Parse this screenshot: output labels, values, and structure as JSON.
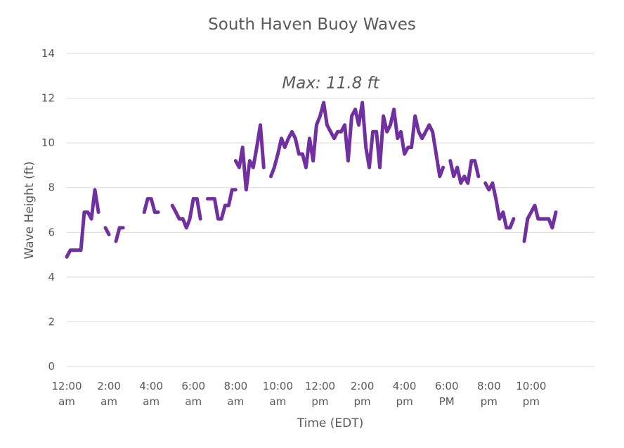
{
  "chart_data": {
    "type": "line",
    "title": "South Haven Buoy Waves",
    "xlabel": "Time (EDT)",
    "ylabel": "Wave Height (ft)",
    "ylim": [
      0,
      14
    ],
    "yticks": [
      "0",
      "2",
      "4",
      "6",
      "8",
      "10",
      "12",
      "14"
    ],
    "xlim": [
      0,
      25
    ],
    "xticks": [
      {
        "pos": 0,
        "line1": "12:00",
        "line2": "am"
      },
      {
        "pos": 2,
        "line1": "2:00",
        "line2": "am"
      },
      {
        "pos": 4,
        "line1": "4:00",
        "line2": "am"
      },
      {
        "pos": 6,
        "line1": "6:00",
        "line2": "am"
      },
      {
        "pos": 8,
        "line1": "8:00",
        "line2": "am"
      },
      {
        "pos": 10,
        "line1": "10:00",
        "line2": "am"
      },
      {
        "pos": 12,
        "line1": "12:00",
        "line2": "pm"
      },
      {
        "pos": 14,
        "line1": "2:00",
        "line2": "pm"
      },
      {
        "pos": 16,
        "line1": "4:00",
        "line2": "pm"
      },
      {
        "pos": 18,
        "line1": "6:00",
        "line2": "PM"
      },
      {
        "pos": 20,
        "line1": "8:00",
        "line2": "pm"
      },
      {
        "pos": 22,
        "line1": "10:00",
        "line2": "pm"
      }
    ],
    "grid": true,
    "legend": "none",
    "color": "#7030a0",
    "annotation": {
      "text": "Max: 11.8 ft",
      "x": 12.5,
      "y": 12.7
    },
    "segments": [
      [
        [
          0.0,
          4.9
        ],
        [
          0.17,
          5.2
        ],
        [
          0.33,
          5.2
        ],
        [
          0.5,
          5.2
        ],
        [
          0.67,
          5.2
        ],
        [
          0.83,
          6.9
        ],
        [
          1.0,
          6.9
        ],
        [
          1.17,
          6.6
        ],
        [
          1.33,
          7.9
        ],
        [
          1.5,
          6.9
        ]
      ],
      [
        [
          1.83,
          6.2
        ],
        [
          2.0,
          5.9
        ]
      ],
      [
        [
          2.33,
          5.6
        ],
        [
          2.5,
          6.2
        ],
        [
          2.67,
          6.2
        ]
      ],
      [
        [
          3.67,
          6.9
        ],
        [
          3.83,
          7.5
        ],
        [
          4.0,
          7.5
        ],
        [
          4.17,
          6.9
        ],
        [
          4.33,
          6.9
        ]
      ],
      [
        [
          5.0,
          7.2
        ],
        [
          5.17,
          6.9
        ],
        [
          5.33,
          6.6
        ],
        [
          5.5,
          6.6
        ],
        [
          5.67,
          6.2
        ],
        [
          5.83,
          6.6
        ],
        [
          6.0,
          7.5
        ],
        [
          6.17,
          7.5
        ],
        [
          6.33,
          6.6
        ]
      ],
      [
        [
          6.67,
          7.5
        ],
        [
          6.83,
          7.5
        ],
        [
          7.0,
          7.5
        ],
        [
          7.17,
          6.6
        ],
        [
          7.33,
          6.6
        ],
        [
          7.5,
          7.2
        ],
        [
          7.67,
          7.2
        ],
        [
          7.83,
          7.9
        ],
        [
          8.0,
          7.9
        ]
      ],
      [
        [
          8.0,
          9.2
        ],
        [
          8.17,
          8.9
        ],
        [
          8.33,
          9.8
        ],
        [
          8.5,
          7.9
        ],
        [
          8.67,
          9.2
        ],
        [
          8.83,
          8.9
        ],
        [
          9.0,
          9.8
        ],
        [
          9.17,
          10.8
        ],
        [
          9.33,
          8.9
        ]
      ],
      [
        [
          9.67,
          8.5
        ],
        [
          9.83,
          8.9
        ],
        [
          10.0,
          9.5
        ],
        [
          10.17,
          10.2
        ],
        [
          10.33,
          9.8
        ],
        [
          10.5,
          10.2
        ],
        [
          10.67,
          10.5
        ],
        [
          10.83,
          10.2
        ],
        [
          11.0,
          9.5
        ],
        [
          11.17,
          9.5
        ],
        [
          11.33,
          8.9
        ],
        [
          11.5,
          10.2
        ],
        [
          11.67,
          9.2
        ],
        [
          11.83,
          10.8
        ],
        [
          12.0,
          11.2
        ],
        [
          12.17,
          11.8
        ],
        [
          12.33,
          10.8
        ],
        [
          12.5,
          10.5
        ],
        [
          12.67,
          10.2
        ],
        [
          12.83,
          10.5
        ],
        [
          13.0,
          10.5
        ],
        [
          13.17,
          10.8
        ],
        [
          13.33,
          9.2
        ],
        [
          13.5,
          11.2
        ],
        [
          13.67,
          11.5
        ],
        [
          13.83,
          10.8
        ],
        [
          14.0,
          11.8
        ],
        [
          14.17,
          9.8
        ],
        [
          14.33,
          8.9
        ],
        [
          14.5,
          10.5
        ],
        [
          14.67,
          10.5
        ],
        [
          14.83,
          8.9
        ],
        [
          15.0,
          11.2
        ],
        [
          15.17,
          10.5
        ],
        [
          15.33,
          10.8
        ],
        [
          15.5,
          11.5
        ],
        [
          15.67,
          10.2
        ],
        [
          15.83,
          10.5
        ],
        [
          16.0,
          9.5
        ],
        [
          16.17,
          9.8
        ],
        [
          16.33,
          9.8
        ],
        [
          16.5,
          11.2
        ],
        [
          16.67,
          10.5
        ],
        [
          16.83,
          10.2
        ],
        [
          17.0,
          10.5
        ],
        [
          17.17,
          10.8
        ],
        [
          17.33,
          10.5
        ],
        [
          17.5,
          9.5
        ],
        [
          17.67,
          8.5
        ],
        [
          17.83,
          8.9
        ]
      ],
      [
        [
          18.17,
          9.2
        ],
        [
          18.33,
          8.5
        ],
        [
          18.5,
          8.9
        ],
        [
          18.67,
          8.2
        ],
        [
          18.83,
          8.5
        ],
        [
          19.0,
          8.2
        ],
        [
          19.17,
          9.2
        ],
        [
          19.33,
          9.2
        ],
        [
          19.5,
          8.5
        ]
      ],
      [
        [
          19.83,
          8.2
        ],
        [
          20.0,
          7.9
        ],
        [
          20.17,
          8.2
        ],
        [
          20.33,
          7.5
        ],
        [
          20.5,
          6.6
        ],
        [
          20.67,
          6.9
        ],
        [
          20.83,
          6.2
        ],
        [
          21.0,
          6.2
        ],
        [
          21.17,
          6.6
        ]
      ],
      [
        [
          21.67,
          5.6
        ],
        [
          21.83,
          6.6
        ],
        [
          22.0,
          6.9
        ],
        [
          22.17,
          7.2
        ],
        [
          22.33,
          6.6
        ],
        [
          22.5,
          6.6
        ],
        [
          22.67,
          6.6
        ],
        [
          22.83,
          6.6
        ],
        [
          23.0,
          6.2
        ],
        [
          23.17,
          6.9
        ]
      ]
    ]
  }
}
